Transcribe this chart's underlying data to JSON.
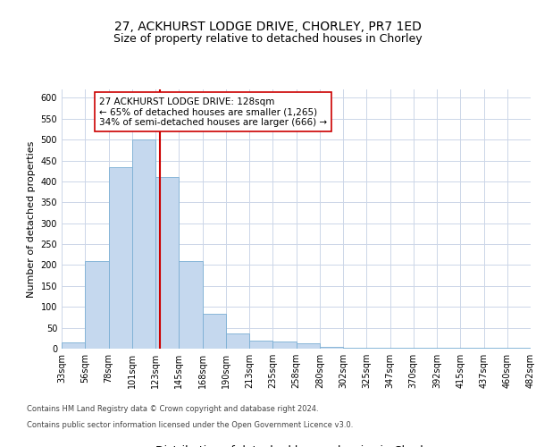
{
  "title1": "27, ACKHURST LODGE DRIVE, CHORLEY, PR7 1ED",
  "title2": "Size of property relative to detached houses in Chorley",
  "xlabel": "Distribution of detached houses by size in Chorley",
  "ylabel": "Number of detached properties",
  "footnote1": "Contains HM Land Registry data © Crown copyright and database right 2024.",
  "footnote2": "Contains public sector information licensed under the Open Government Licence v3.0.",
  "bar_values": [
    15,
    210,
    435,
    500,
    410,
    210,
    83,
    36,
    20,
    17,
    12,
    5,
    2,
    2,
    2,
    2,
    2,
    2,
    2,
    2
  ],
  "bar_color": "#c5d8ee",
  "bar_edge_color": "#7bafd4",
  "n_bins": 20,
  "tick_labels": [
    "33sqm",
    "56sqm",
    "78sqm",
    "101sqm",
    "123sqm",
    "145sqm",
    "168sqm",
    "190sqm",
    "213sqm",
    "235sqm",
    "258sqm",
    "280sqm",
    "302sqm",
    "325sqm",
    "347sqm",
    "370sqm",
    "392sqm",
    "415sqm",
    "437sqm",
    "460sqm",
    "482sqm"
  ],
  "property_size_bin": 4,
  "vline_color": "#cc0000",
  "annotation_line1": "27 ACKHURST LODGE DRIVE: 128sqm",
  "annotation_line2": "← 65% of detached houses are smaller (1,265)",
  "annotation_line3": "34% of semi-detached houses are larger (666) →",
  "annotation_box_color": "#ffffff",
  "annotation_box_edge": "#cc0000",
  "ylim": [
    0,
    620
  ],
  "yticks": [
    0,
    50,
    100,
    150,
    200,
    250,
    300,
    350,
    400,
    450,
    500,
    550,
    600
  ],
  "bg_color": "#ffffff",
  "grid_color": "#ccd6e8",
  "title1_fontsize": 10,
  "title2_fontsize": 9,
  "xlabel_fontsize": 9,
  "ylabel_fontsize": 8,
  "annotation_fontsize": 7.5,
  "tick_fontsize": 7,
  "footnote_fontsize": 6
}
